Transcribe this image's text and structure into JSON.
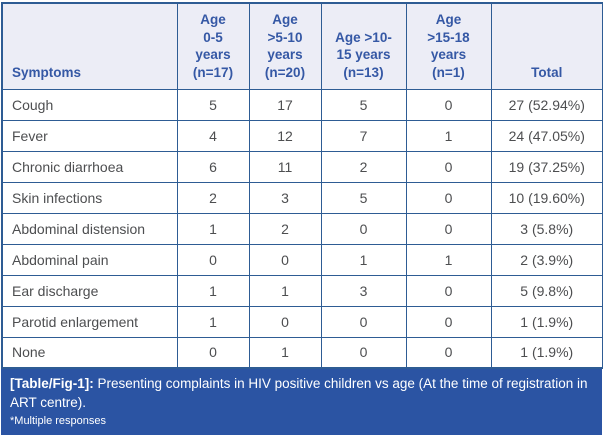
{
  "table": {
    "columns": [
      {
        "key": "symptoms",
        "label": "Symptoms",
        "align": "left"
      },
      {
        "key": "age-0-5",
        "label": "Age\n0-5\nyears\n(n=17)"
      },
      {
        "key": "age-5-10",
        "label": "Age\n>5-10\nyears\n(n=20)"
      },
      {
        "key": "age-10-15",
        "label": "Age >10-\n15 years\n(n=13)"
      },
      {
        "key": "age-15-18",
        "label": "Age\n>15-18\nyears\n(n=1)"
      },
      {
        "key": "total",
        "label": "Total"
      }
    ],
    "rows": [
      [
        "Cough",
        "5",
        "17",
        "5",
        "0",
        "27 (52.94%)"
      ],
      [
        "Fever",
        "4",
        "12",
        "7",
        "1",
        "24 (47.05%)"
      ],
      [
        "Chronic diarrhoea",
        "6",
        "11",
        "2",
        "0",
        "19 (37.25%)"
      ],
      [
        "Skin infections",
        "2",
        "3",
        "5",
        "0",
        "10 (19.60%)"
      ],
      [
        "Abdominal distension",
        "1",
        "2",
        "0",
        "0",
        "3 (5.8%)"
      ],
      [
        "Abdominal pain",
        "0",
        "0",
        "1",
        "1",
        "2 (3.9%)"
      ],
      [
        "Ear discharge",
        "1",
        "1",
        "3",
        "0",
        "5 (9.8%)"
      ],
      [
        "Parotid enlargement",
        "1",
        "0",
        "0",
        "0",
        "1 (1.9%)"
      ],
      [
        "None",
        "0",
        "1",
        "0",
        "0",
        "1 (1.9%)"
      ]
    ]
  },
  "caption": {
    "label": "[Table/Fig-1]:",
    "text": "Presenting complaints in HIV positive children vs age (At the time of registration in ART centre).",
    "footnote": "*Multiple responses"
  },
  "colors": {
    "border": "#2e5c94",
    "header_bg": "#ecedf6",
    "header_text": "#3558a5",
    "body_text": "#4d4e50",
    "caption_bg": "#2b54a3",
    "caption_text": "#ffffff"
  }
}
